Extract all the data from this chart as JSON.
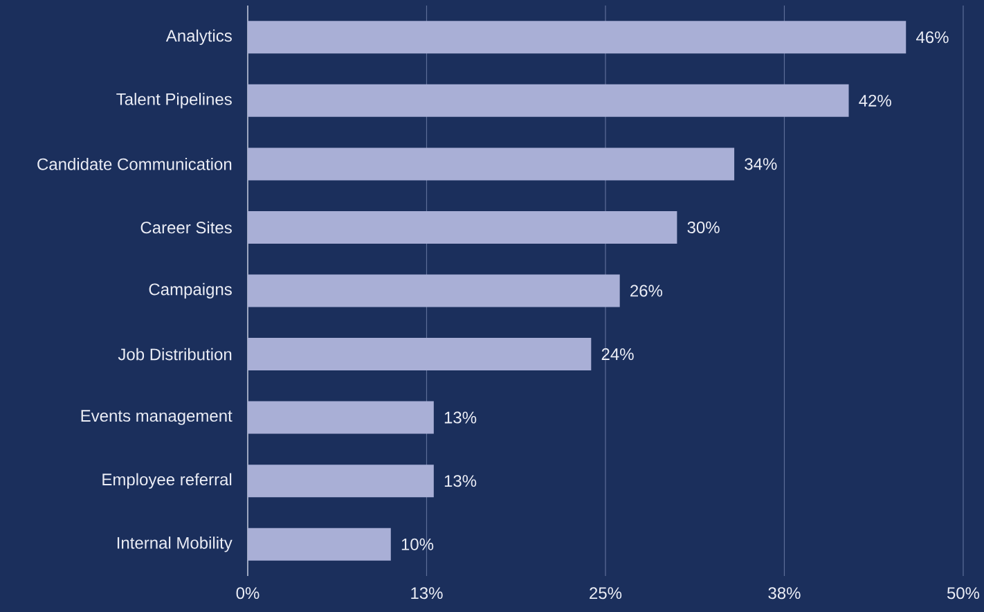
{
  "chart_data": {
    "type": "bar",
    "orientation": "horizontal",
    "categories": [
      "Analytics",
      "Talent Pipelines",
      "Candidate Communication",
      "Career Sites",
      "Campaigns",
      "Job Distribution",
      "Events management",
      "Employee referral",
      "Internal Mobility"
    ],
    "values": [
      46,
      42,
      34,
      30,
      26,
      24,
      13,
      13,
      10
    ],
    "value_labels": [
      "46%",
      "42%",
      "34%",
      "30%",
      "26%",
      "24%",
      "13%",
      "13%",
      "10%"
    ],
    "color": "#a9afd6",
    "xlim": [
      0,
      50
    ],
    "xticks": [
      {
        "value": 0,
        "label": "0%"
      },
      {
        "value": 12.5,
        "label": "13%"
      },
      {
        "value": 25,
        "label": "25%"
      },
      {
        "value": 37.5,
        "label": "38%"
      },
      {
        "value": 50,
        "label": "50%"
      }
    ],
    "grid": "x"
  }
}
